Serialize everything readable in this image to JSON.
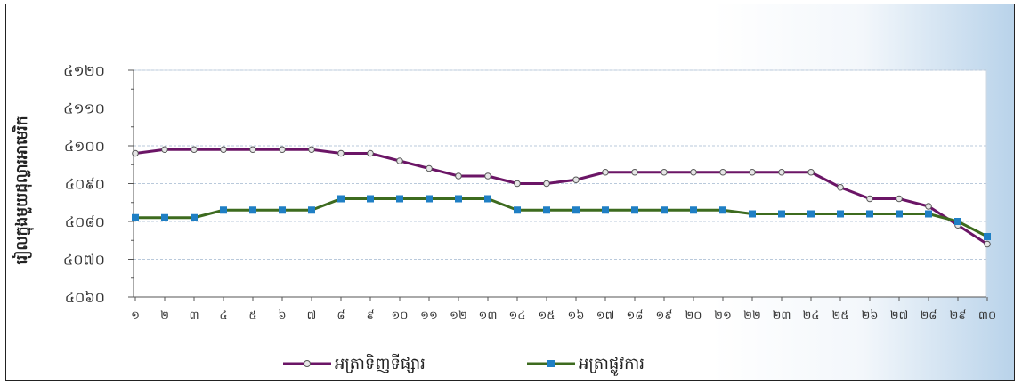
{
  "chart_data": {
    "type": "line",
    "title": "",
    "ylabel": "រៀលក្នុងមួយដុល្លារអាមេរិក",
    "xlabel": "",
    "ylim": [
      4060,
      4120
    ],
    "yticks": [
      4060,
      4070,
      4080,
      4090,
      4100,
      4110,
      4120
    ],
    "ytick_labels": [
      "៤០៦០",
      "៤០៧០",
      "៤០៨០",
      "៤០៩០",
      "៤១០០",
      "៤១១០",
      "៤១២០"
    ],
    "x_labels": [
      "១",
      "២",
      "៣",
      "៤",
      "៥",
      "៦",
      "៧",
      "៨",
      "៩",
      "១០",
      "១១",
      "១២",
      "១៣",
      "១៤",
      "១៥",
      "១៦",
      "១៧",
      "១៨",
      "១៩",
      "២០",
      "២១",
      "២២",
      "២៣",
      "២៤",
      "២៥",
      "២៦",
      "២៧",
      "២៨",
      "២៩",
      "៣០"
    ],
    "grid": true,
    "legend_position": "bottom",
    "series": [
      {
        "name": "អត្រាទិញទីផ្សារ",
        "color": "#6b1566",
        "marker": "circle",
        "values": [
          4098,
          4099,
          4099,
          4099,
          4099,
          4099,
          4099,
          4098,
          4098,
          4096,
          4094,
          4092,
          4092,
          4090,
          4090,
          4091,
          4093,
          4093,
          4093,
          4093,
          4093,
          4093,
          4093,
          4093,
          4089,
          4086,
          4086,
          4084,
          4079,
          4074
        ]
      },
      {
        "name": "អត្រាផ្លូវការ",
        "color": "#3d6b1f",
        "marker": "square",
        "values": [
          4081,
          4081,
          4081,
          4083,
          4083,
          4083,
          4083,
          4086,
          4086,
          4086,
          4086,
          4086,
          4086,
          4083,
          4083,
          4083,
          4083,
          4083,
          4083,
          4083,
          4083,
          4082,
          4082,
          4082,
          4082,
          4082,
          4082,
          4082,
          4080,
          4076
        ]
      }
    ]
  }
}
